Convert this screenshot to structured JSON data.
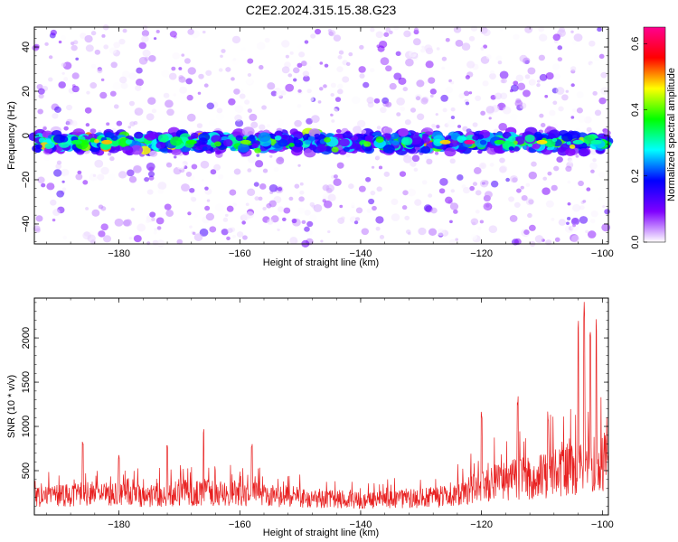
{
  "title": "C2E2.2024.315.15.38.G23",
  "chart_data": [
    {
      "type": "heatmap",
      "xlabel": "Height of straight line (km)",
      "ylabel": "Frequency (Hz)",
      "xlim": [
        -194,
        -99
      ],
      "ylim": [
        -49,
        49
      ],
      "xticks": [
        -180,
        -160,
        -140,
        -120,
        -100
      ],
      "yticks": [
        -40,
        -20,
        0,
        20,
        40
      ],
      "grid": false,
      "colorbar": {
        "label": "Normalized spectral amplitude",
        "range": [
          0,
          0.65
        ],
        "ticks": [
          0.0,
          0.2,
          0.4,
          0.6
        ],
        "tick_labels": [
          "0.0",
          "0.2",
          "0.4",
          "0.6"
        ],
        "colormap": [
          "#ffffff",
          "#7f00ff",
          "#0000ff",
          "#00ffff",
          "#00ff00",
          "#ffff00",
          "#ff0000",
          "#ff0090"
        ]
      },
      "band": {
        "center_hz": -3,
        "halfwidth_hz": 6,
        "peak_value": 0.65
      }
    },
    {
      "type": "line",
      "xlabel": "Height of straight line (km)",
      "ylabel": "SNR (10 * v/v)",
      "xlim": [
        -194,
        -99
      ],
      "ylim": [
        0,
        2450
      ],
      "xticks": [
        -180,
        -160,
        -140,
        -120,
        -100
      ],
      "yticks": [
        500,
        1000,
        1500,
        2000
      ],
      "grid": false,
      "line_color": "#ff0000",
      "baseline_by_height": [
        {
          "x": -194,
          "y": 230
        },
        {
          "x": -185,
          "y": 280
        },
        {
          "x": -175,
          "y": 250
        },
        {
          "x": -165,
          "y": 290
        },
        {
          "x": -155,
          "y": 260
        },
        {
          "x": -145,
          "y": 210
        },
        {
          "x": -135,
          "y": 200
        },
        {
          "x": -125,
          "y": 250
        },
        {
          "x": -120,
          "y": 380
        },
        {
          "x": -115,
          "y": 470
        },
        {
          "x": -110,
          "y": 520
        },
        {
          "x": -105,
          "y": 620
        },
        {
          "x": -100,
          "y": 700
        }
      ],
      "peaks": [
        {
          "x": -186,
          "y": 880
        },
        {
          "x": -180,
          "y": 700
        },
        {
          "x": -172,
          "y": 820
        },
        {
          "x": -166,
          "y": 970
        },
        {
          "x": -158,
          "y": 820
        },
        {
          "x": -120,
          "y": 1180
        },
        {
          "x": -114,
          "y": 1350
        },
        {
          "x": -109,
          "y": 1180
        },
        {
          "x": -104,
          "y": 2200
        },
        {
          "x": -103,
          "y": 2450
        },
        {
          "x": -102,
          "y": 2100
        },
        {
          "x": -101,
          "y": 2220
        }
      ]
    }
  ]
}
